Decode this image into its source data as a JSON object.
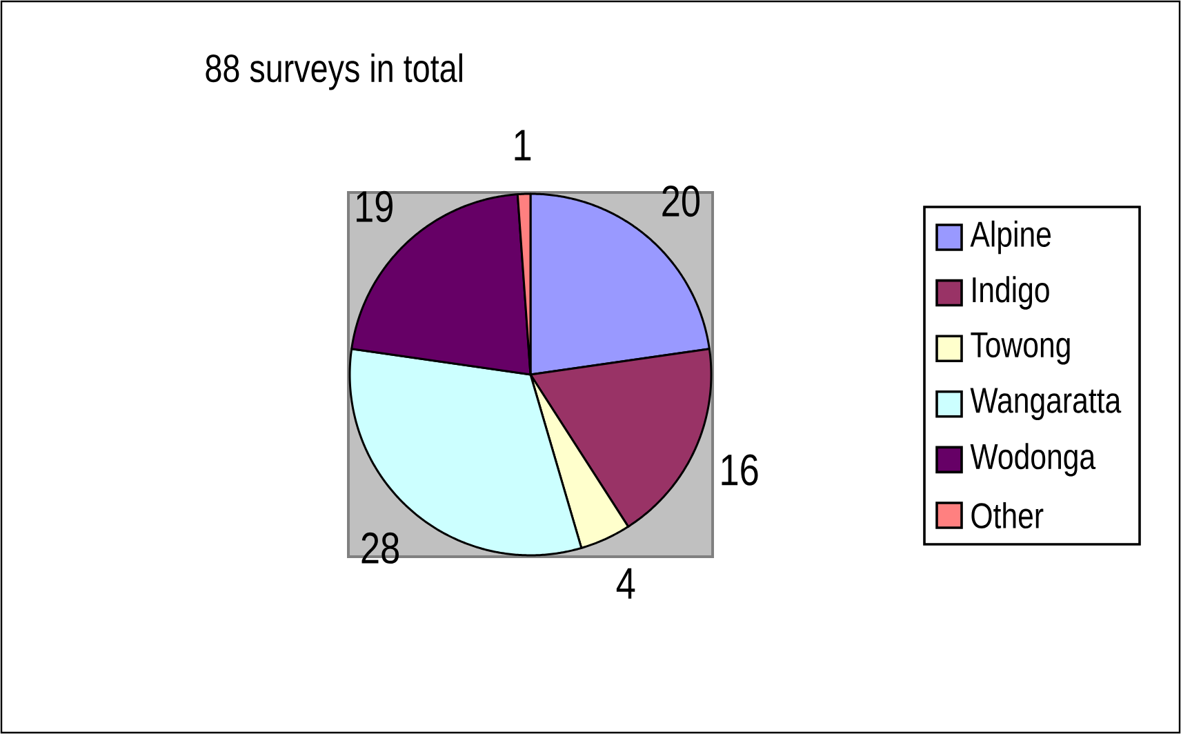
{
  "chart_data": {
    "type": "pie",
    "title": "88 surveys in total",
    "categories": [
      "Alpine",
      "Indigo",
      "Towong",
      "Wangaratta",
      "Wodonga",
      "Other"
    ],
    "values": [
      20,
      16,
      4,
      28,
      19,
      1
    ],
    "colors": [
      "#9999ff",
      "#993366",
      "#ffffcc",
      "#ccffff",
      "#660066",
      "#ff8080"
    ],
    "data_labels": true,
    "legend": "right"
  }
}
